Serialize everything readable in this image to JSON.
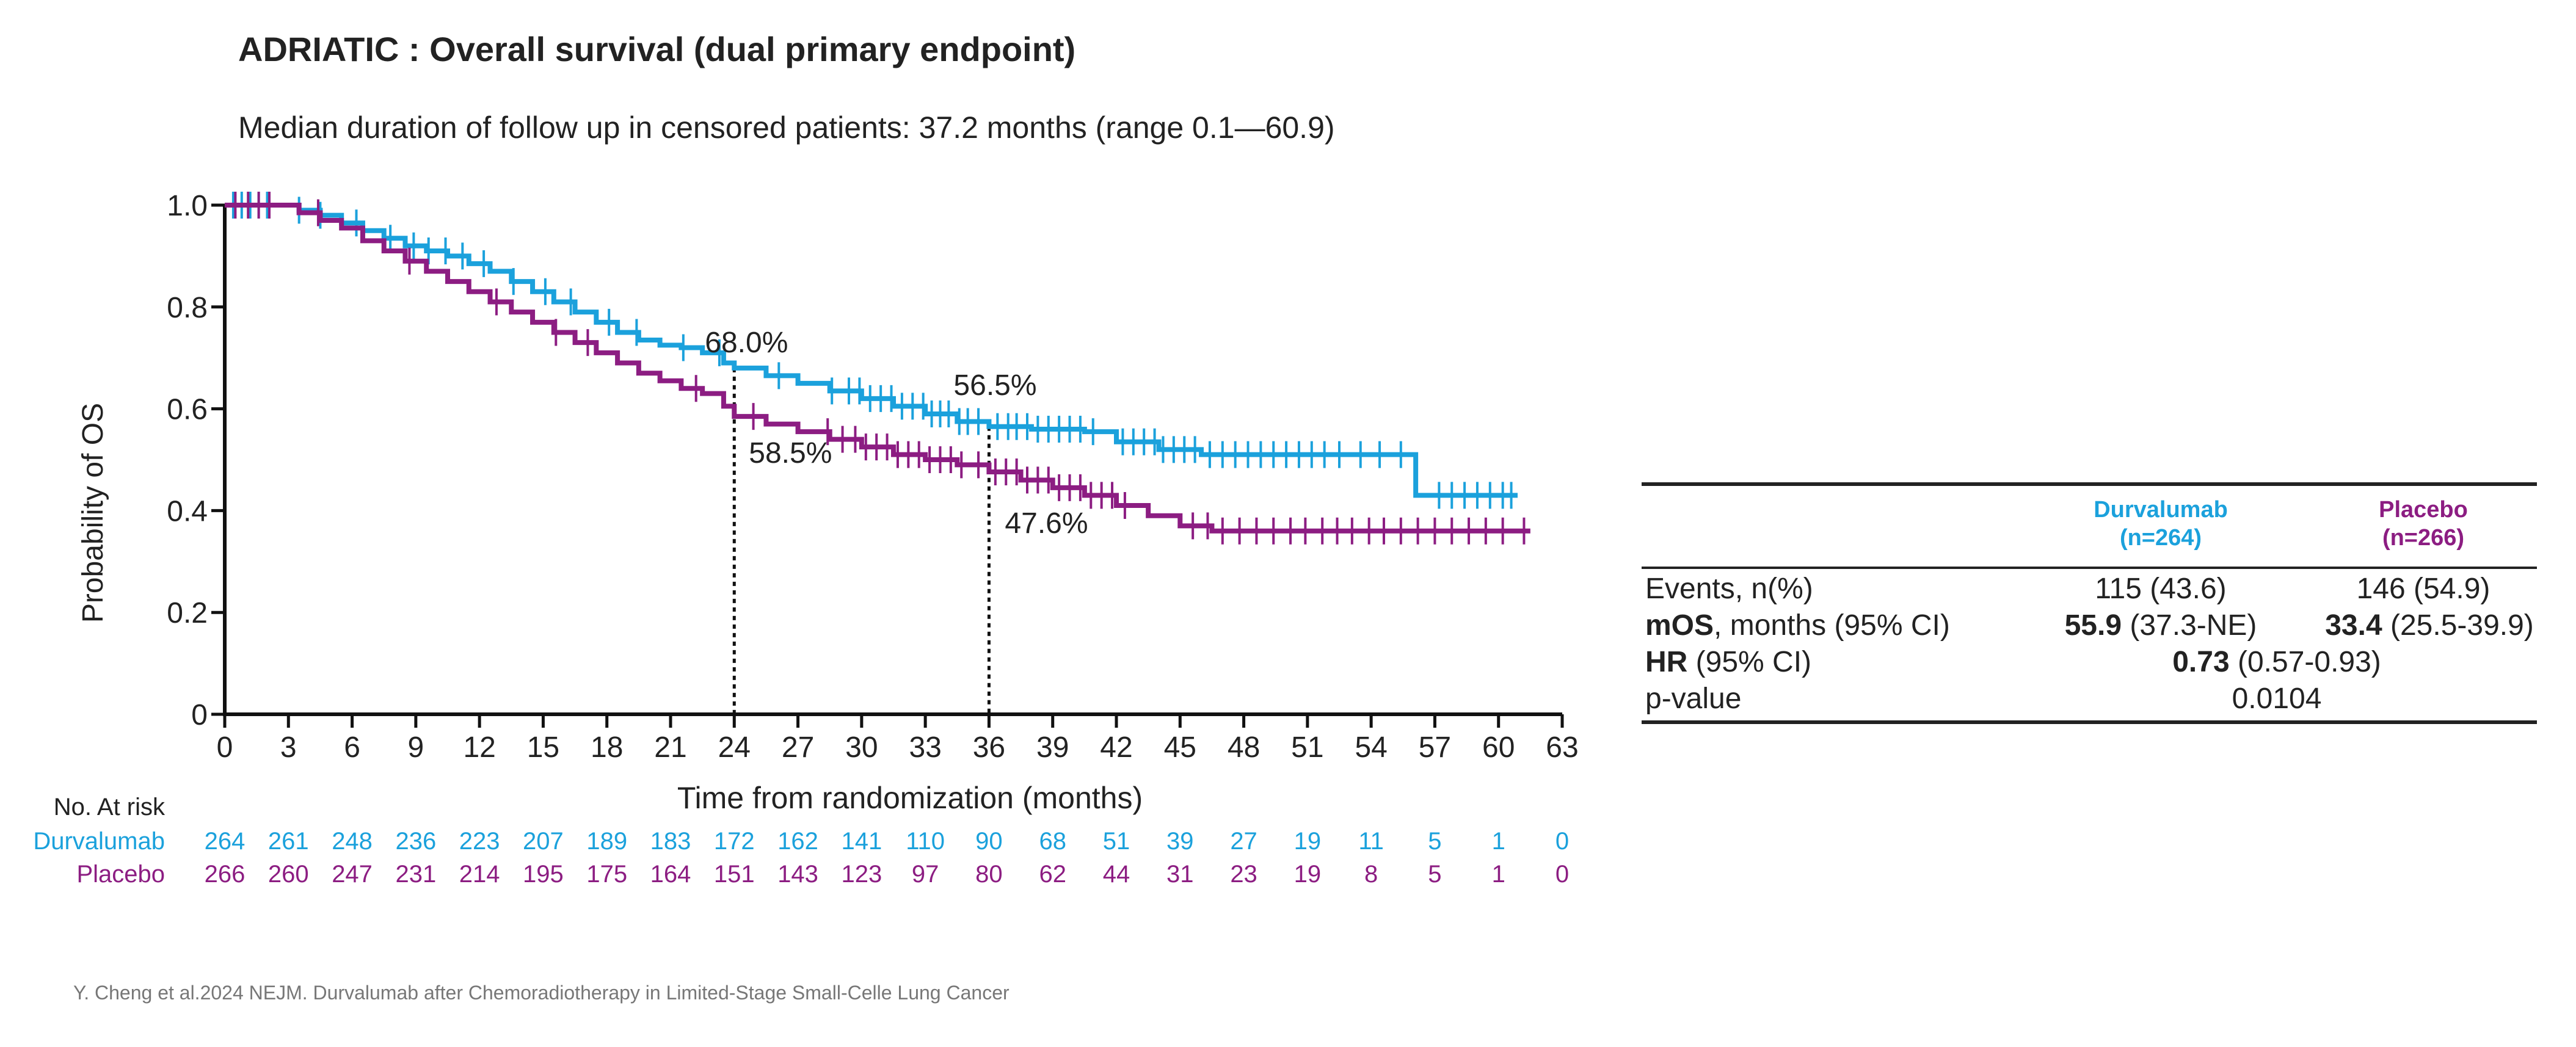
{
  "title": "ADRIATIC : Overall survival (dual primary endpoint)",
  "subtitle": "Median duration of follow up in censored patients: 37.2 months (range 0.1—60.9)",
  "source": "Y. Cheng et al.2024 NEJM. Durvalumab after Chemoradiotherapy in Limited-Stage Small-Celle Lung Cancer",
  "colors": {
    "durvalumab": "#1ba1dc",
    "placebo": "#8c1d82",
    "axis": "#111111"
  },
  "chart_data": {
    "type": "line",
    "subtype": "kaplan-meier step",
    "xlabel": "Time from randomization (months)",
    "ylabel": "Probability of OS",
    "xlim": [
      0,
      63
    ],
    "ylim": [
      0,
      1
    ],
    "xticks": [
      0,
      3,
      6,
      9,
      12,
      15,
      18,
      21,
      24,
      27,
      30,
      33,
      36,
      39,
      42,
      45,
      48,
      51,
      54,
      57,
      60,
      63
    ],
    "yticks": [
      {
        "v": 0,
        "label": "0"
      },
      {
        "v": 0.2,
        "label": "0.2"
      },
      {
        "v": 0.4,
        "label": "0.4"
      },
      {
        "v": 0.6,
        "label": "0.6"
      },
      {
        "v": 0.8,
        "label": "0.8"
      },
      {
        "v": 1.0,
        "label": "1.0"
      }
    ],
    "series": [
      {
        "name": "Durvalumab",
        "color": "#1ba1dc",
        "points": [
          [
            0,
            1.0
          ],
          [
            2.5,
            1.0
          ],
          [
            3.5,
            0.99
          ],
          [
            4.5,
            0.98
          ],
          [
            5.5,
            0.965
          ],
          [
            6.5,
            0.95
          ],
          [
            7.5,
            0.935
          ],
          [
            8.5,
            0.92
          ],
          [
            9.5,
            0.91
          ],
          [
            10.5,
            0.9
          ],
          [
            11.5,
            0.885
          ],
          [
            12.5,
            0.87
          ],
          [
            13.5,
            0.85
          ],
          [
            14.5,
            0.83
          ],
          [
            15.5,
            0.81
          ],
          [
            16.5,
            0.79
          ],
          [
            17.5,
            0.77
          ],
          [
            18.5,
            0.75
          ],
          [
            19.5,
            0.735
          ],
          [
            20.5,
            0.725
          ],
          [
            21.5,
            0.72
          ],
          [
            22.5,
            0.71
          ],
          [
            23.5,
            0.69
          ],
          [
            24.0,
            0.68
          ],
          [
            25.5,
            0.665
          ],
          [
            27.0,
            0.65
          ],
          [
            28.5,
            0.635
          ],
          [
            30.0,
            0.62
          ],
          [
            31.5,
            0.605
          ],
          [
            33.0,
            0.59
          ],
          [
            34.5,
            0.575
          ],
          [
            36.0,
            0.565
          ],
          [
            38.0,
            0.56
          ],
          [
            40.5,
            0.555
          ],
          [
            42.0,
            0.535
          ],
          [
            44.0,
            0.52
          ],
          [
            46.0,
            0.51
          ],
          [
            50.0,
            0.51
          ],
          [
            56.0,
            0.51
          ],
          [
            56.1,
            0.43
          ],
          [
            60.9,
            0.43
          ]
        ],
        "censor": [
          0.4,
          0.8,
          1.2,
          1.6,
          2.0,
          3.5,
          4.5,
          6.2,
          7.8,
          8.9,
          9.6,
          10.4,
          11.2,
          12.2,
          13.6,
          15.1,
          16.3,
          18.1,
          19.4,
          21.6,
          23.3,
          26.1,
          28.6,
          29.4,
          29.9,
          30.4,
          30.9,
          31.4,
          31.9,
          32.4,
          32.9,
          33.3,
          33.7,
          34.1,
          34.6,
          35.0,
          35.5,
          36.4,
          36.9,
          37.3,
          37.8,
          38.3,
          38.8,
          39.3,
          39.8,
          40.3,
          40.9,
          42.3,
          42.8,
          43.3,
          43.8,
          44.2,
          44.7,
          45.2,
          45.7,
          46.4,
          47.0,
          47.6,
          48.2,
          48.8,
          49.4,
          50.0,
          50.6,
          51.2,
          51.8,
          52.5,
          53.5,
          54.4,
          55.4,
          57.2,
          57.8,
          58.4,
          59.0,
          59.6,
          60.2,
          60.6
        ]
      },
      {
        "name": "Placebo",
        "color": "#8c1d82",
        "points": [
          [
            0,
            1.0
          ],
          [
            2.5,
            1.0
          ],
          [
            3.5,
            0.985
          ],
          [
            4.5,
            0.97
          ],
          [
            5.5,
            0.955
          ],
          [
            6.5,
            0.93
          ],
          [
            7.5,
            0.91
          ],
          [
            8.5,
            0.89
          ],
          [
            9.5,
            0.87
          ],
          [
            10.5,
            0.85
          ],
          [
            11.5,
            0.83
          ],
          [
            12.5,
            0.81
          ],
          [
            13.5,
            0.79
          ],
          [
            14.5,
            0.77
          ],
          [
            15.5,
            0.75
          ],
          [
            16.5,
            0.73
          ],
          [
            17.5,
            0.71
          ],
          [
            18.5,
            0.69
          ],
          [
            19.5,
            0.67
          ],
          [
            20.5,
            0.655
          ],
          [
            21.5,
            0.64
          ],
          [
            22.5,
            0.63
          ],
          [
            23.5,
            0.605
          ],
          [
            24.0,
            0.585
          ],
          [
            25.5,
            0.57
          ],
          [
            27.0,
            0.555
          ],
          [
            28.5,
            0.54
          ],
          [
            30.0,
            0.525
          ],
          [
            31.5,
            0.51
          ],
          [
            33.0,
            0.5
          ],
          [
            34.5,
            0.49
          ],
          [
            36.0,
            0.476
          ],
          [
            37.5,
            0.46
          ],
          [
            39.0,
            0.445
          ],
          [
            40.5,
            0.43
          ],
          [
            42.0,
            0.41
          ],
          [
            43.5,
            0.39
          ],
          [
            45.0,
            0.37
          ],
          [
            46.5,
            0.36
          ],
          [
            50.0,
            0.36
          ],
          [
            61.5,
            0.36
          ]
        ],
        "censor": [
          0.5,
          1.1,
          1.6,
          2.1,
          4.4,
          8.7,
          12.8,
          15.6,
          17.1,
          22.2,
          24.9,
          28.4,
          29.1,
          29.7,
          30.2,
          30.7,
          31.2,
          31.7,
          32.2,
          32.7,
          33.2,
          33.7,
          34.2,
          34.7,
          35.5,
          36.3,
          36.8,
          37.3,
          37.8,
          38.3,
          38.8,
          39.3,
          39.8,
          40.3,
          40.8,
          41.3,
          41.8,
          42.4,
          45.6,
          46.3,
          47.0,
          47.8,
          48.6,
          49.4,
          50.2,
          50.9,
          51.7,
          52.4,
          53.1,
          53.9,
          54.6,
          55.4,
          56.2,
          57.0,
          57.8,
          58.6,
          59.4,
          60.2,
          61.2
        ]
      }
    ],
    "annotations": [
      {
        "x": 24,
        "y": 0.68,
        "text": "68.0%"
      },
      {
        "x": 24,
        "y": 0.585,
        "text": "58.5%"
      },
      {
        "x": 36,
        "y": 0.565,
        "text": "56.5%"
      },
      {
        "x": 36,
        "y": 0.476,
        "text": "47.6%"
      }
    ],
    "reference_lines": [
      24,
      36
    ],
    "grid": false,
    "risk_table": {
      "header": "No. At risk",
      "times": [
        0,
        3,
        6,
        9,
        12,
        15,
        18,
        21,
        24,
        27,
        30,
        33,
        36,
        39,
        42,
        45,
        48,
        51,
        54,
        57,
        60,
        63
      ],
      "rows": [
        {
          "name": "Durvalumab",
          "values": [
            264,
            261,
            248,
            236,
            223,
            207,
            189,
            183,
            172,
            162,
            141,
            110,
            90,
            68,
            51,
            39,
            27,
            19,
            11,
            5,
            1,
            0
          ]
        },
        {
          "name": "Placebo",
          "values": [
            266,
            260,
            247,
            231,
            214,
            195,
            175,
            164,
            151,
            143,
            123,
            97,
            80,
            62,
            44,
            31,
            23,
            19,
            8,
            5,
            1,
            0
          ]
        }
      ]
    }
  },
  "table": {
    "col_durva": {
      "name": "Durvalumab",
      "n": "(n=264)"
    },
    "col_placebo": {
      "name": "Placebo",
      "n": "(n=266)"
    },
    "events": {
      "label": "Events, n(%)",
      "durva": "115 (43.6)",
      "placebo": "146 (54.9)"
    },
    "mos": {
      "label_bold": "mOS",
      "label_rest": ", months (95% CI)",
      "durva_bold": "55.9",
      "durva_rest": " (37.3-NE)",
      "placebo_bold": "33.4",
      "placebo_rest": " (25.5-39.9)"
    },
    "hr": {
      "label_bold": "HR",
      "label_rest": " (95% CI)",
      "value_bold": "0.73",
      "value_rest": " (0.57-0.93)"
    },
    "pvalue": {
      "label": "p-value",
      "value": "0.0104"
    }
  }
}
